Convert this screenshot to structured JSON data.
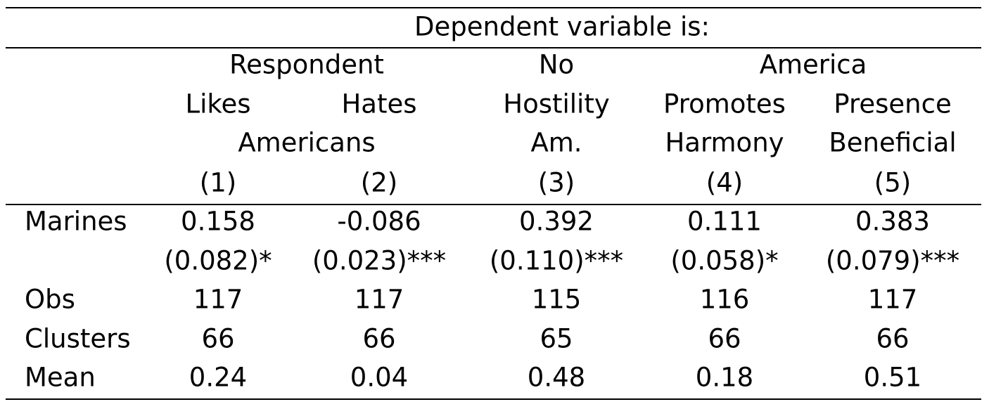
{
  "table": {
    "spanner_label": "Dependent variable is:",
    "group_headers": [
      "Respondent",
      "No",
      "America"
    ],
    "header_row1": [
      "Likes",
      "Hates",
      "Hostility",
      "Promotes",
      "Presence"
    ],
    "header_row2": [
      "Americans",
      "Am.",
      "Harmony",
      "Beneficial"
    ],
    "column_numbers": [
      "(1)",
      "(2)",
      "(3)",
      "(4)",
      "(5)"
    ],
    "rows": [
      {
        "label": "Marines",
        "values": [
          "0.158",
          "-0.086",
          "0.392",
          "0.111",
          "0.383"
        ]
      },
      {
        "label": "",
        "values": [
          "(0.082)*",
          "(0.023)***",
          "(0.110)***",
          "(0.058)*",
          "(0.079)***"
        ]
      },
      {
        "label": "Obs",
        "values": [
          "117",
          "117",
          "115",
          "116",
          "117"
        ]
      },
      {
        "label": "Clusters",
        "values": [
          "66",
          "66",
          "65",
          "66",
          "66"
        ]
      },
      {
        "label": "Mean",
        "values": [
          "0.24",
          "0.04",
          "0.48",
          "0.18",
          "0.51"
        ]
      }
    ]
  }
}
